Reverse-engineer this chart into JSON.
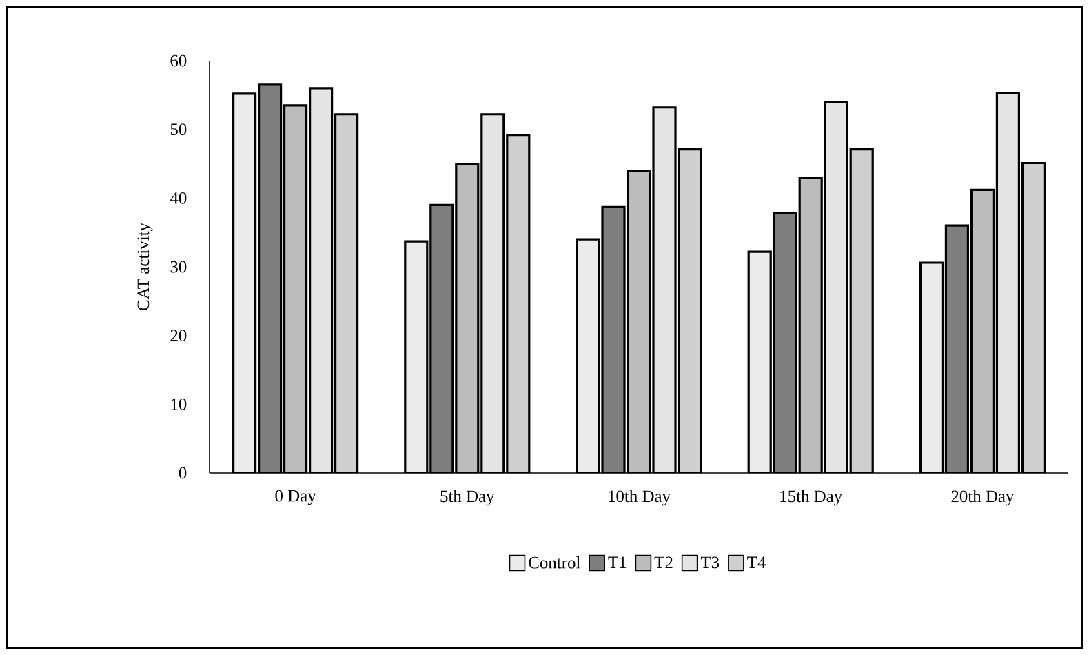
{
  "chart_data": {
    "type": "bar",
    "ylabel": "CAT activity",
    "categories": [
      "0 Day",
      "5th Day",
      "10th Day",
      "15th Day",
      "20th Day"
    ],
    "series": [
      {
        "name": "Control",
        "color": "#ebebeb",
        "values": [
          55.2,
          33.7,
          34.0,
          32.2,
          30.6
        ]
      },
      {
        "name": "T1",
        "color": "#7f7f7f",
        "values": [
          56.5,
          39.0,
          38.7,
          37.8,
          36.0
        ]
      },
      {
        "name": "T2",
        "color": "#bcbcbc",
        "values": [
          53.5,
          45.0,
          43.9,
          42.9,
          41.2
        ]
      },
      {
        "name": "T3",
        "color": "#e4e4e4",
        "values": [
          56.0,
          52.2,
          53.2,
          54.0,
          55.3
        ]
      },
      {
        "name": "T4",
        "color": "#cfcfcf",
        "values": [
          52.2,
          49.2,
          47.1,
          47.1,
          45.1
        ]
      }
    ],
    "ylim": [
      0,
      60
    ],
    "yticks": [
      0,
      10,
      20,
      30,
      40,
      50,
      60
    ],
    "grid": false,
    "legend": "bottom"
  }
}
